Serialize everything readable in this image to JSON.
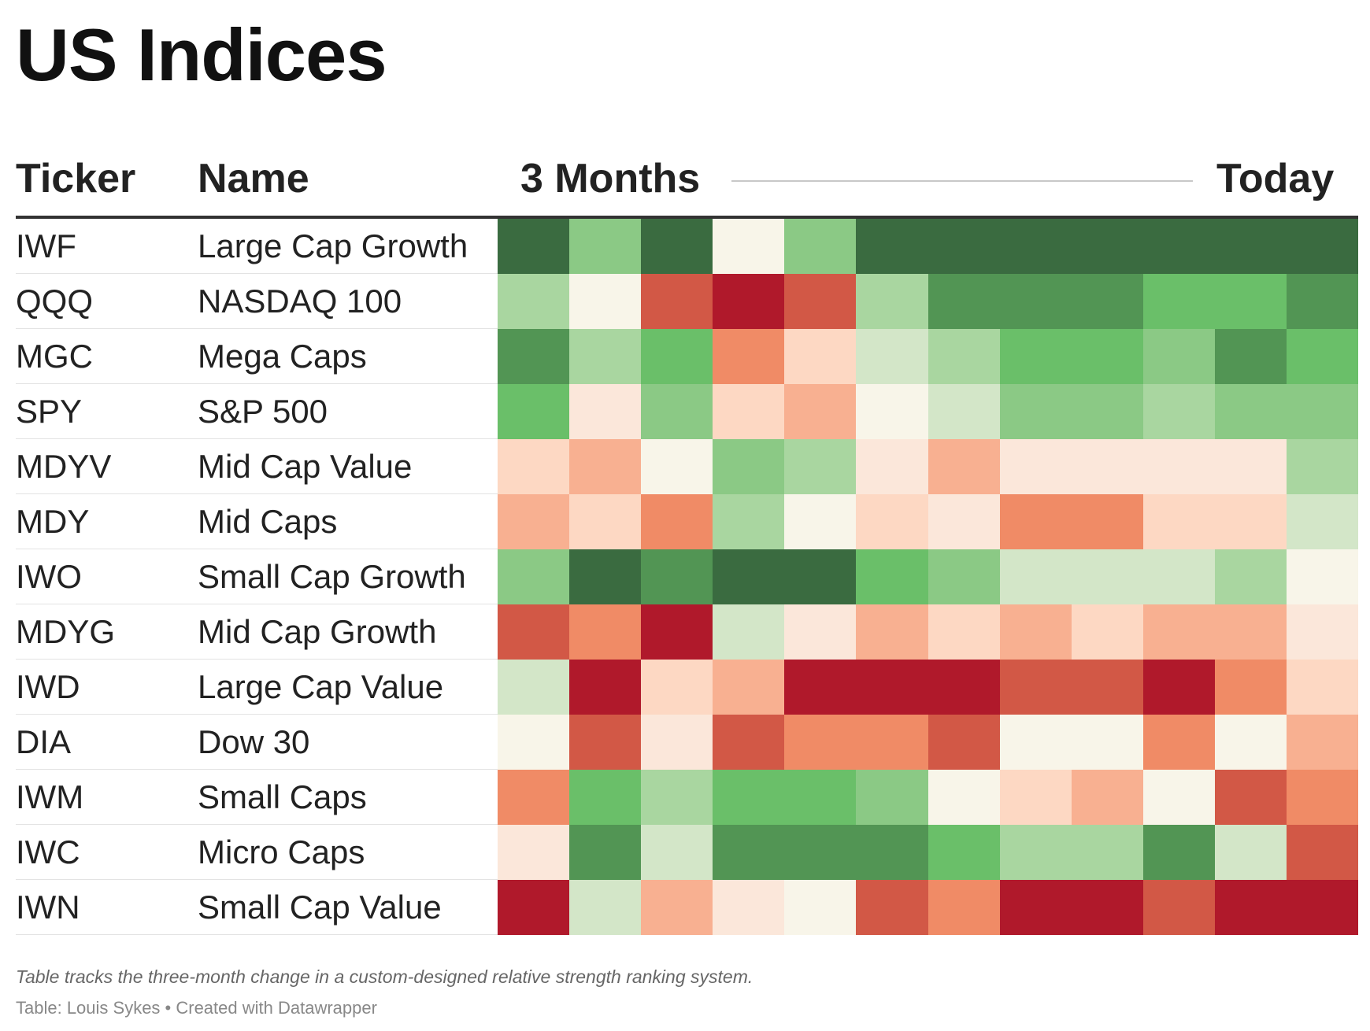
{
  "title": "US Indices",
  "headers": {
    "ticker": "Ticker",
    "name": "Name",
    "start": "3 Months",
    "end": "Today"
  },
  "notes": "Table tracks the three-month change in a custom-designed relative strength ranking system.",
  "source": "Table: Louis Sykes • Created with Datawrapper",
  "colors": {
    "dg": "#3a6b40",
    "mg": "#529554",
    "g": "#6abf69",
    "lg": "#8bc985",
    "llg": "#a9d6a0",
    "vlg": "#d3e6c8",
    "n": "#f8f5e9",
    "vlp": "#fbe7da",
    "lp": "#fdd8c3",
    "p": "#f8b091",
    "o": "#f08b66",
    "r": "#d25846",
    "dr": "#b0192b"
  },
  "chart_data": {
    "type": "heatmap",
    "columns": 12,
    "scale_order": [
      "dg",
      "mg",
      "g",
      "lg",
      "llg",
      "vlg",
      "n",
      "vlp",
      "lp",
      "p",
      "o",
      "r",
      "dr"
    ],
    "rows": [
      {
        "ticker": "IWF",
        "name": "Large Cap Growth",
        "cells": [
          "dg",
          "lg",
          "dg",
          "n",
          "lg",
          "dg",
          "dg",
          "dg",
          "dg",
          "dg",
          "dg",
          "dg"
        ]
      },
      {
        "ticker": "QQQ",
        "name": "NASDAQ 100",
        "cells": [
          "llg",
          "n",
          "r",
          "dr",
          "r",
          "llg",
          "mg",
          "mg",
          "mg",
          "g",
          "g",
          "mg"
        ]
      },
      {
        "ticker": "MGC",
        "name": "Mega Caps",
        "cells": [
          "mg",
          "llg",
          "g",
          "o",
          "lp",
          "vlg",
          "llg",
          "g",
          "g",
          "lg",
          "mg",
          "g"
        ]
      },
      {
        "ticker": "SPY",
        "name": "S&P 500",
        "cells": [
          "g",
          "vlp",
          "lg",
          "lp",
          "p",
          "n",
          "vlg",
          "lg",
          "lg",
          "llg",
          "lg",
          "lg"
        ]
      },
      {
        "ticker": "MDYV",
        "name": "Mid Cap Value",
        "cells": [
          "lp",
          "p",
          "n",
          "lg",
          "llg",
          "vlp",
          "p",
          "vlp",
          "vlp",
          "vlp",
          "vlp",
          "llg"
        ]
      },
      {
        "ticker": "MDY",
        "name": "Mid Caps",
        "cells": [
          "p",
          "lp",
          "o",
          "llg",
          "n",
          "lp",
          "vlp",
          "o",
          "o",
          "lp",
          "lp",
          "vlg"
        ]
      },
      {
        "ticker": "IWO",
        "name": "Small Cap Growth",
        "cells": [
          "lg",
          "dg",
          "mg",
          "dg",
          "dg",
          "g",
          "lg",
          "vlg",
          "vlg",
          "vlg",
          "llg",
          "n"
        ]
      },
      {
        "ticker": "MDYG",
        "name": "Mid Cap Growth",
        "cells": [
          "r",
          "o",
          "dr",
          "vlg",
          "vlp",
          "p",
          "lp",
          "p",
          "lp",
          "p",
          "p",
          "vlp"
        ]
      },
      {
        "ticker": "IWD",
        "name": "Large Cap Value",
        "cells": [
          "vlg",
          "dr",
          "lp",
          "p",
          "dr",
          "dr",
          "dr",
          "r",
          "r",
          "dr",
          "o",
          "lp"
        ]
      },
      {
        "ticker": "DIA",
        "name": "Dow 30",
        "cells": [
          "n",
          "r",
          "vlp",
          "r",
          "o",
          "o",
          "r",
          "n",
          "n",
          "o",
          "n",
          "p"
        ]
      },
      {
        "ticker": "IWM",
        "name": "Small Caps",
        "cells": [
          "o",
          "g",
          "llg",
          "g",
          "g",
          "lg",
          "n",
          "lp",
          "p",
          "n",
          "r",
          "o"
        ]
      },
      {
        "ticker": "IWC",
        "name": "Micro Caps",
        "cells": [
          "vlp",
          "mg",
          "vlg",
          "mg",
          "mg",
          "mg",
          "g",
          "llg",
          "llg",
          "mg",
          "vlg",
          "r"
        ]
      },
      {
        "ticker": "IWN",
        "name": "Small Cap Value",
        "cells": [
          "dr",
          "vlg",
          "p",
          "vlp",
          "n",
          "r",
          "o",
          "dr",
          "dr",
          "r",
          "dr",
          "dr"
        ]
      }
    ]
  }
}
